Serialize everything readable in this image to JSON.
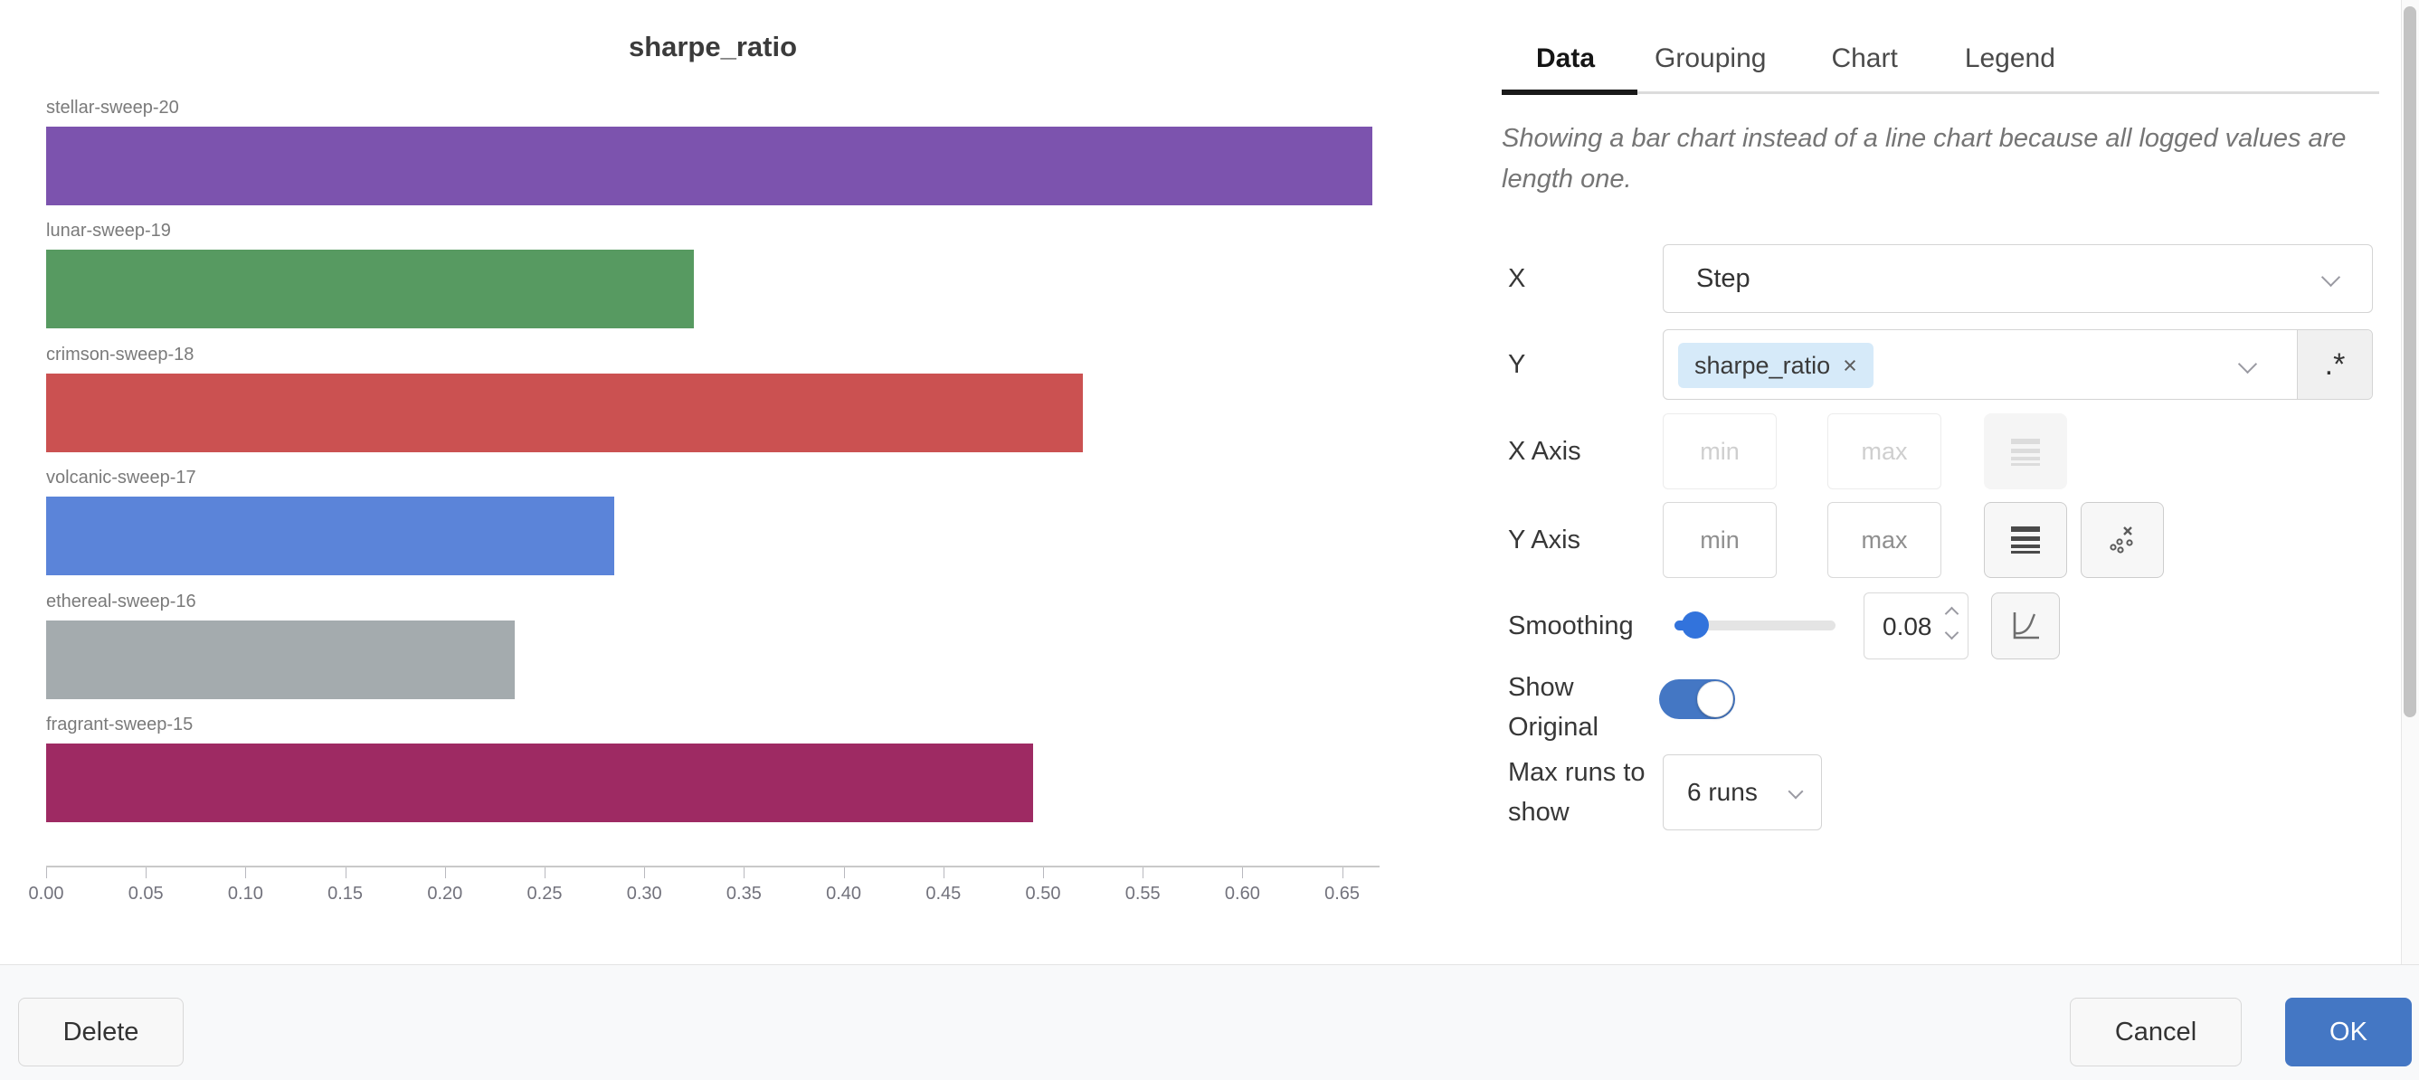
{
  "chart_data": {
    "type": "bar",
    "orientation": "horizontal",
    "title": "sharpe_ratio",
    "categories": [
      "stellar-sweep-20",
      "lunar-sweep-19",
      "crimson-sweep-18",
      "volcanic-sweep-17",
      "ethereal-sweep-16",
      "fragrant-sweep-15"
    ],
    "values": [
      0.665,
      0.325,
      0.52,
      0.285,
      0.235,
      0.495
    ],
    "colors": [
      "#7C53AE",
      "#579A61",
      "#CB5151",
      "#5B84D9",
      "#A4ABAE",
      "#9E2A63"
    ],
    "title_note": "",
    "xlabel": "",
    "ylabel": "",
    "xlim": [
      0,
      0.669
    ],
    "xticks": [
      "0.00",
      "0.05",
      "0.10",
      "0.15",
      "0.20",
      "0.25",
      "0.30",
      "0.35",
      "0.40",
      "0.45",
      "0.50",
      "0.55",
      "0.60",
      "0.65"
    ],
    "grid": false,
    "legend_position": "none"
  },
  "panel": {
    "tabs": [
      {
        "label": "Data",
        "active": true
      },
      {
        "label": "Grouping",
        "active": false
      },
      {
        "label": "Chart",
        "active": false
      },
      {
        "label": "Legend",
        "active": false
      }
    ],
    "notice": "Showing a bar chart instead of a line chart because all logged values are length one.",
    "rows": {
      "x": {
        "label": "X",
        "value": "Step"
      },
      "y": {
        "label": "Y",
        "chip": "sharpe_ratio",
        "chip_remove": "×",
        "regex_button": ".*"
      },
      "x_axis": {
        "label": "X Axis",
        "min_placeholder": "min",
        "max_placeholder": "max"
      },
      "y_axis": {
        "label": "Y Axis",
        "min_placeholder": "min",
        "max_placeholder": "max"
      },
      "smoothing": {
        "label": "Smoothing",
        "value": "0.08"
      },
      "show_original": {
        "label": "Show Original",
        "enabled": true
      },
      "max_runs": {
        "label": "Max runs to show",
        "value": "6 runs"
      }
    }
  },
  "footer": {
    "delete_label": "Delete",
    "cancel_label": "Cancel",
    "ok_label": "OK"
  },
  "colors": {
    "accent_blue": "#4477C4",
    "slider_blue": "#3273DC",
    "chip_bg": "#D6EAF9"
  }
}
